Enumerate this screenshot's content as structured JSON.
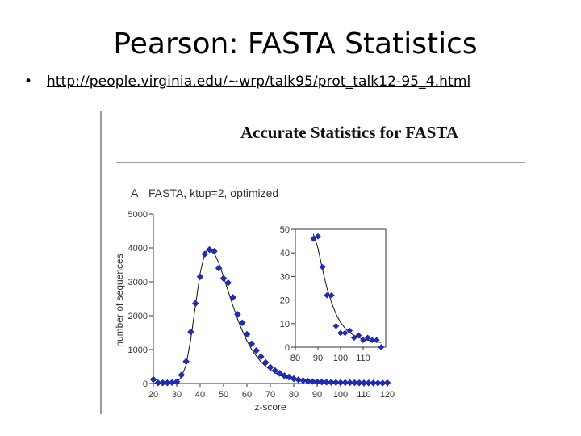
{
  "slide": {
    "title": "Pearson: FASTA Statistics",
    "bullet": "•",
    "link": "http://people.virginia.edu/~wrp/talk95/prot_talk12-95_4.html"
  },
  "figure": {
    "heading": "Accurate Statistics for FASTA"
  },
  "chart_data": [
    {
      "type": "scatter",
      "panel": "A",
      "title": "FASTA, ktup=2, optimized",
      "xlabel": "z-score",
      "ylabel": "number of sequences",
      "xlim": [
        20,
        120
      ],
      "ylim": [
        0,
        5000
      ],
      "xticks": [
        20,
        30,
        40,
        50,
        60,
        70,
        80,
        90,
        100,
        110,
        120
      ],
      "yticks": [
        0,
        1000,
        2000,
        3000,
        4000,
        5000
      ],
      "marker_color": "#1f2bbf",
      "line_color": "#000000",
      "grid": false,
      "series": [
        {
          "kind": "observed",
          "x": [
            20,
            22,
            24,
            26,
            28,
            30,
            32,
            34,
            36,
            38,
            40,
            42,
            44,
            46,
            48,
            50,
            52,
            54,
            56,
            58,
            60,
            62,
            64,
            66,
            68,
            70,
            72,
            74,
            76,
            78,
            80,
            82,
            84,
            86,
            88,
            90,
            92,
            94,
            96,
            98,
            100,
            102,
            104,
            106,
            108,
            110,
            112,
            114,
            116,
            118,
            120
          ],
          "y": [
            120,
            20,
            20,
            20,
            30,
            50,
            250,
            650,
            1520,
            2360,
            3150,
            3820,
            3950,
            3900,
            3400,
            3100,
            2970,
            2540,
            2040,
            1790,
            1450,
            1170,
            970,
            790,
            620,
            480,
            380,
            300,
            230,
            190,
            140,
            110,
            90,
            70,
            60,
            50,
            45,
            40,
            35,
            30,
            28,
            26,
            24,
            22,
            20,
            18,
            16,
            15,
            14,
            13,
            20
          ]
        },
        {
          "kind": "fitted",
          "x": [
            20,
            24,
            28,
            30,
            32,
            34,
            36,
            38,
            40,
            42,
            44,
            46,
            48,
            50,
            52,
            54,
            56,
            58,
            60,
            62,
            64,
            66,
            68,
            70,
            74,
            78,
            82,
            86,
            90,
            95,
            100,
            105,
            110,
            115,
            120
          ],
          "y": [
            0,
            0,
            10,
            40,
            180,
            550,
            1300,
            2300,
            3250,
            3850,
            4000,
            3850,
            3550,
            3150,
            2720,
            2300,
            1900,
            1560,
            1260,
            1010,
            810,
            640,
            510,
            400,
            240,
            140,
            85,
            55,
            38,
            24,
            16,
            11,
            8,
            6,
            5
          ]
        }
      ]
    },
    {
      "type": "scatter",
      "panel": "inset",
      "xlim": [
        80,
        120
      ],
      "ylim": [
        0,
        50
      ],
      "xticks": [
        80,
        90,
        100,
        110
      ],
      "yticks": [
        0,
        10,
        20,
        30,
        40,
        50
      ],
      "series": [
        {
          "kind": "observed",
          "x": [
            88,
            90,
            92,
            94,
            96,
            98,
            100,
            102,
            104,
            106,
            108,
            110,
            112,
            114,
            116,
            118
          ],
          "y": [
            46,
            47,
            34,
            22,
            22,
            9,
            6,
            6,
            7,
            4,
            5,
            3,
            4,
            3,
            3,
            0
          ]
        },
        {
          "kind": "fitted",
          "x": [
            88,
            90,
            92,
            94,
            96,
            98,
            100,
            102,
            104,
            106,
            108,
            110,
            112,
            114,
            116,
            118
          ],
          "y": [
            48,
            42,
            33,
            25,
            19,
            14,
            10.5,
            8,
            6.2,
            5,
            4,
            3.4,
            3,
            2.6,
            2.3,
            2
          ]
        }
      ]
    }
  ]
}
